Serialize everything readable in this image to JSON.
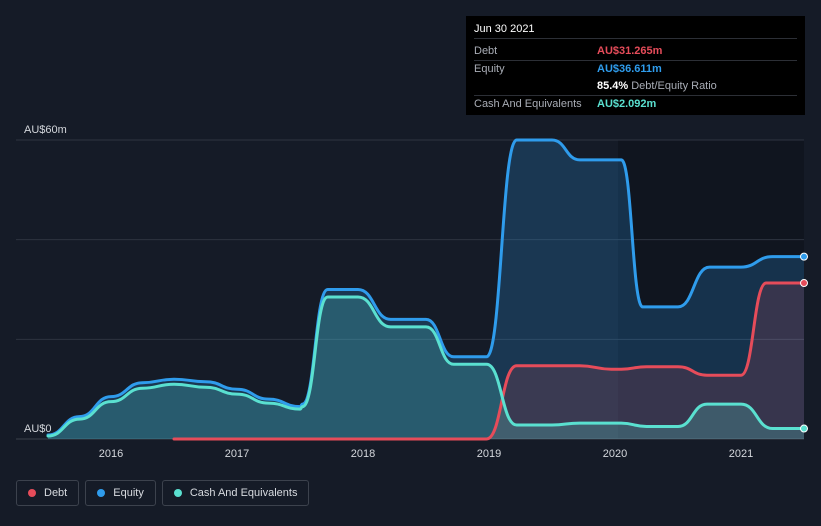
{
  "tooltip": {
    "date": "Jun 30 2021",
    "rows": [
      {
        "label": "Debt",
        "value": "AU$31.265m",
        "color": "#e64c5a"
      },
      {
        "label": "Equity",
        "value": "AU$36.611m",
        "color": "#2f9cec"
      },
      {
        "label": "",
        "value": "85.4%",
        "suffix": "Debt/Equity Ratio",
        "color": "#ffffff"
      },
      {
        "label": "Cash And Equivalents",
        "value": "AU$2.092m",
        "color": "#5ae0d0"
      }
    ]
  },
  "legend": [
    {
      "name": "Debt",
      "color": "#e64c5a"
    },
    {
      "name": "Equity",
      "color": "#2f9cec"
    },
    {
      "name": "Cash And Equivalents",
      "color": "#5ae0d0"
    }
  ],
  "chart_data": {
    "type": "area",
    "title": "",
    "xlabel": "",
    "ylabel": "",
    "y_tick_labels": [
      {
        "label": "AU$60m",
        "value": 60
      },
      {
        "label": "AU$0",
        "value": 0
      }
    ],
    "ylim": [
      0,
      60
    ],
    "xlim": [
      2015.5,
      2021.5
    ],
    "x_ticks": [
      2016,
      2017,
      2018,
      2019,
      2020,
      2021
    ],
    "grid": true,
    "legend_position": "bottom-left",
    "series": [
      {
        "name": "Equity",
        "color": "#2f9cec",
        "points": [
          [
            2015.5,
            0.8
          ],
          [
            2015.75,
            4.5
          ],
          [
            2016.0,
            8.5
          ],
          [
            2016.25,
            11.3
          ],
          [
            2016.5,
            12.0
          ],
          [
            2016.75,
            11.5
          ],
          [
            2017.0,
            10.0
          ],
          [
            2017.25,
            8.0
          ],
          [
            2017.5,
            6.5
          ],
          [
            2017.52,
            7.0
          ],
          [
            2017.72,
            30.0
          ],
          [
            2017.96,
            30.0
          ],
          [
            2018.22,
            24.0
          ],
          [
            2018.5,
            24.0
          ],
          [
            2018.72,
            16.5
          ],
          [
            2018.98,
            16.5
          ],
          [
            2019.22,
            60.0
          ],
          [
            2019.5,
            60.0
          ],
          [
            2019.72,
            56.0
          ],
          [
            2020.05,
            56.0
          ],
          [
            2020.22,
            26.5
          ],
          [
            2020.5,
            26.5
          ],
          [
            2020.75,
            34.5
          ],
          [
            2021.0,
            34.5
          ],
          [
            2021.25,
            36.6
          ],
          [
            2021.5,
            36.6
          ]
        ]
      },
      {
        "name": "Debt",
        "color": "#e64c5a",
        "points": [
          [
            2016.5,
            0
          ],
          [
            2018.98,
            0
          ],
          [
            2019.22,
            14.7
          ],
          [
            2019.72,
            14.7
          ],
          [
            2019.97,
            14.0
          ],
          [
            2020.05,
            14.0
          ],
          [
            2020.25,
            14.5
          ],
          [
            2020.5,
            14.5
          ],
          [
            2020.73,
            12.8
          ],
          [
            2021.0,
            12.8
          ],
          [
            2021.2,
            31.3
          ],
          [
            2021.5,
            31.3
          ]
        ]
      },
      {
        "name": "Cash And Equivalents",
        "color": "#5ae0d0",
        "points": [
          [
            2015.5,
            0.6
          ],
          [
            2015.75,
            4.0
          ],
          [
            2016.0,
            7.5
          ],
          [
            2016.25,
            10.2
          ],
          [
            2016.5,
            11.0
          ],
          [
            2016.75,
            10.4
          ],
          [
            2017.0,
            9.0
          ],
          [
            2017.25,
            7.2
          ],
          [
            2017.5,
            6.0
          ],
          [
            2017.52,
            6.5
          ],
          [
            2017.72,
            28.5
          ],
          [
            2017.96,
            28.5
          ],
          [
            2018.22,
            22.5
          ],
          [
            2018.5,
            22.5
          ],
          [
            2018.72,
            15.0
          ],
          [
            2018.98,
            15.0
          ],
          [
            2019.22,
            2.8
          ],
          [
            2019.5,
            2.8
          ],
          [
            2019.72,
            3.2
          ],
          [
            2020.05,
            3.2
          ],
          [
            2020.25,
            2.5
          ],
          [
            2020.5,
            2.5
          ],
          [
            2020.73,
            7.0
          ],
          [
            2021.0,
            7.0
          ],
          [
            2021.25,
            2.1
          ],
          [
            2021.5,
            2.1
          ]
        ]
      }
    ]
  }
}
